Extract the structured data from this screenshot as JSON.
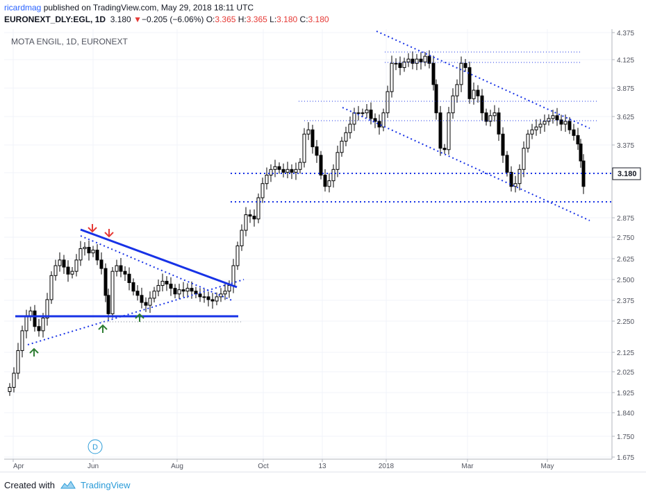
{
  "header": {
    "username": "ricardmag",
    "published_text": " published on TradingView.com, May 29, 2018 18:11 UTC",
    "symbol": "EURONEXT_DLY:EGL, 1D",
    "last": "3.180",
    "change_arrow": "▼",
    "change": "−0.205 (−6.06%)",
    "o_label": "O:",
    "o_value": "3.365",
    "h_label": "H:",
    "h_value": "3.365",
    "l_label": "L:",
    "l_value": "3.180",
    "c_label": "C:",
    "c_value": "3.180"
  },
  "footer": {
    "created_with": "Created with",
    "brand": "TradingView"
  },
  "chart_data": {
    "type": "candlestick",
    "title": "MOTA ENGIL, 1D, EURONEXT",
    "last_price_label": "3.180",
    "event_marker": "D",
    "y_ticks": [
      "4.375",
      "4.125",
      "3.875",
      "3.625",
      "3.375",
      "3.125",
      "2.875",
      "2.750",
      "2.625",
      "2.500",
      "2.375",
      "2.250",
      "2.125",
      "2.025",
      "1.925",
      "1.840",
      "1.750",
      "1.675"
    ],
    "x_ticks": [
      {
        "label": "Apr",
        "x": 13
      },
      {
        "label": "Jun",
        "x": 128
      },
      {
        "label": "Aug",
        "x": 249
      },
      {
        "label": "Oct",
        "x": 373
      },
      {
        "label": "13",
        "x": 458
      },
      {
        "label": "2018",
        "x": 550
      },
      {
        "label": "Mar",
        "x": 667
      },
      {
        "label": "May",
        "x": 782
      }
    ],
    "price_path": [
      [
        8,
        1.76
      ],
      [
        14,
        1.86
      ],
      [
        20,
        2.02
      ],
      [
        26,
        2.16
      ],
      [
        32,
        2.26
      ],
      [
        38,
        2.3
      ],
      [
        44,
        2.19
      ],
      [
        50,
        2.16
      ],
      [
        56,
        2.25
      ],
      [
        62,
        2.38
      ],
      [
        68,
        2.55
      ],
      [
        74,
        2.62
      ],
      [
        80,
        2.66
      ],
      [
        86,
        2.61
      ],
      [
        92,
        2.56
      ],
      [
        98,
        2.58
      ],
      [
        104,
        2.66
      ],
      [
        110,
        2.74
      ],
      [
        116,
        2.75
      ],
      [
        122,
        2.71
      ],
      [
        128,
        2.73
      ],
      [
        134,
        2.66
      ],
      [
        140,
        2.6
      ],
      [
        146,
        2.41
      ],
      [
        150,
        2.28
      ],
      [
        156,
        2.58
      ],
      [
        162,
        2.62
      ],
      [
        168,
        2.58
      ],
      [
        174,
        2.56
      ],
      [
        180,
        2.5
      ],
      [
        186,
        2.44
      ],
      [
        192,
        2.41
      ],
      [
        198,
        2.36
      ],
      [
        204,
        2.34
      ],
      [
        210,
        2.39
      ],
      [
        216,
        2.44
      ],
      [
        222,
        2.48
      ],
      [
        228,
        2.51
      ],
      [
        234,
        2.49
      ],
      [
        240,
        2.46
      ],
      [
        246,
        2.42
      ],
      [
        252,
        2.45
      ],
      [
        258,
        2.44
      ],
      [
        264,
        2.46
      ],
      [
        270,
        2.44
      ],
      [
        276,
        2.42
      ],
      [
        282,
        2.4
      ],
      [
        288,
        2.4
      ],
      [
        294,
        2.38
      ],
      [
        300,
        2.37
      ],
      [
        306,
        2.4
      ],
      [
        312,
        2.42
      ],
      [
        318,
        2.44
      ],
      [
        324,
        2.48
      ],
      [
        330,
        2.62
      ],
      [
        336,
        2.76
      ],
      [
        342,
        2.87
      ],
      [
        348,
        2.98
      ],
      [
        354,
        2.97
      ],
      [
        360,
        2.95
      ],
      [
        366,
        3.1
      ],
      [
        372,
        3.2
      ],
      [
        378,
        3.26
      ],
      [
        384,
        3.3
      ],
      [
        390,
        3.32
      ],
      [
        396,
        3.3
      ],
      [
        402,
        3.28
      ],
      [
        408,
        3.3
      ],
      [
        414,
        3.28
      ],
      [
        420,
        3.3
      ],
      [
        426,
        3.35
      ],
      [
        432,
        3.55
      ],
      [
        438,
        3.58
      ],
      [
        444,
        3.46
      ],
      [
        450,
        3.4
      ],
      [
        456,
        3.26
      ],
      [
        462,
        3.18
      ],
      [
        468,
        3.22
      ],
      [
        474,
        3.3
      ],
      [
        480,
        3.42
      ],
      [
        486,
        3.5
      ],
      [
        492,
        3.56
      ],
      [
        498,
        3.62
      ],
      [
        504,
        3.7
      ],
      [
        510,
        3.7
      ],
      [
        516,
        3.7
      ],
      [
        522,
        3.72
      ],
      [
        528,
        3.66
      ],
      [
        534,
        3.64
      ],
      [
        540,
        3.6
      ],
      [
        546,
        3.7
      ],
      [
        552,
        3.85
      ],
      [
        558,
        4.05
      ],
      [
        564,
        4.05
      ],
      [
        570,
        4.02
      ],
      [
        576,
        4.06
      ],
      [
        582,
        4.08
      ],
      [
        588,
        4.05
      ],
      [
        594,
        4.08
      ],
      [
        600,
        4.06
      ],
      [
        606,
        4.1
      ],
      [
        612,
        4.05
      ],
      [
        618,
        3.9
      ],
      [
        622,
        3.7
      ],
      [
        628,
        3.45
      ],
      [
        634,
        3.44
      ],
      [
        640,
        3.7
      ],
      [
        646,
        3.82
      ],
      [
        652,
        3.9
      ],
      [
        658,
        4.05
      ],
      [
        664,
        4.02
      ],
      [
        670,
        3.8
      ],
      [
        676,
        3.86
      ],
      [
        682,
        3.82
      ],
      [
        688,
        3.7
      ],
      [
        694,
        3.64
      ],
      [
        700,
        3.68
      ],
      [
        706,
        3.7
      ],
      [
        712,
        3.55
      ],
      [
        718,
        3.4
      ],
      [
        724,
        3.28
      ],
      [
        730,
        3.18
      ],
      [
        736,
        3.2
      ],
      [
        742,
        3.3
      ],
      [
        748,
        3.45
      ],
      [
        754,
        3.55
      ],
      [
        760,
        3.58
      ],
      [
        766,
        3.6
      ],
      [
        772,
        3.62
      ],
      [
        778,
        3.64
      ],
      [
        784,
        3.66
      ],
      [
        790,
        3.68
      ],
      [
        796,
        3.65
      ],
      [
        802,
        3.62
      ],
      [
        808,
        3.64
      ],
      [
        814,
        3.58
      ],
      [
        820,
        3.54
      ],
      [
        826,
        3.48
      ],
      [
        830,
        3.36
      ],
      [
        834,
        3.18
      ]
    ]
  }
}
